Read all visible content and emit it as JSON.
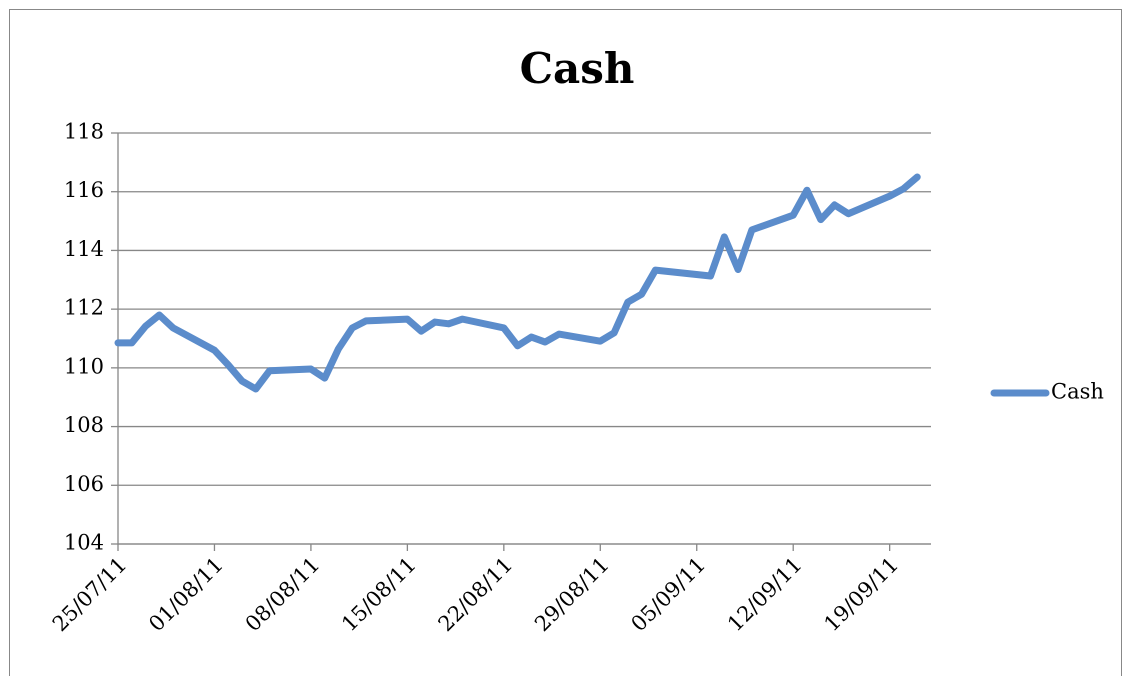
{
  "chart_data": {
    "type": "line",
    "title": "Cash",
    "x": [
      "2011-07-25",
      "2011-07-26",
      "2011-07-27",
      "2011-07-28",
      "2011-07-29",
      "2011-08-01",
      "2011-08-02",
      "2011-08-03",
      "2011-08-04",
      "2011-08-05",
      "2011-08-08",
      "2011-08-09",
      "2011-08-10",
      "2011-08-11",
      "2011-08-12",
      "2011-08-15",
      "2011-08-16",
      "2011-08-17",
      "2011-08-18",
      "2011-08-19",
      "2011-08-22",
      "2011-08-23",
      "2011-08-24",
      "2011-08-25",
      "2011-08-26",
      "2011-08-29",
      "2011-08-30",
      "2011-08-31",
      "2011-09-01",
      "2011-09-02",
      "2011-09-06",
      "2011-09-07",
      "2011-09-08",
      "2011-09-09",
      "2011-09-12",
      "2011-09-13",
      "2011-09-14",
      "2011-09-15",
      "2011-09-16",
      "2011-09-19",
      "2011-09-20",
      "2011-09-21"
    ],
    "series": [
      {
        "name": "Cash",
        "color": "#5b8ccb",
        "values": [
          110.85,
          110.85,
          111.42,
          111.8,
          111.36,
          110.6,
          110.1,
          109.55,
          109.28,
          109.9,
          109.96,
          109.65,
          110.65,
          111.36,
          111.6,
          111.66,
          111.25,
          111.56,
          111.5,
          111.66,
          111.36,
          110.75,
          111.05,
          110.88,
          111.15,
          110.91,
          111.19,
          112.24,
          112.51,
          113.33,
          113.13,
          114.46,
          113.35,
          114.7,
          115.2,
          116.05,
          115.05,
          115.55,
          115.25,
          115.85,
          116.1,
          116.5
        ]
      }
    ],
    "xlim": [
      "2011-07-25",
      "2011-09-22"
    ],
    "xticks": [
      {
        "value": "2011-07-25",
        "label": "25/07/11"
      },
      {
        "value": "2011-08-01",
        "label": "01/08/11"
      },
      {
        "value": "2011-08-08",
        "label": "08/08/11"
      },
      {
        "value": "2011-08-15",
        "label": "15/08/11"
      },
      {
        "value": "2011-08-22",
        "label": "22/08/11"
      },
      {
        "value": "2011-08-29",
        "label": "29/08/11"
      },
      {
        "value": "2011-09-05",
        "label": "05/09/11"
      },
      {
        "value": "2011-09-12",
        "label": "12/09/11"
      },
      {
        "value": "2011-09-19",
        "label": "19/09/11"
      }
    ],
    "ylim": [
      104,
      118
    ],
    "yticks": [
      104,
      106,
      108,
      110,
      112,
      114,
      116,
      118
    ],
    "grid": true,
    "legend": "right"
  }
}
